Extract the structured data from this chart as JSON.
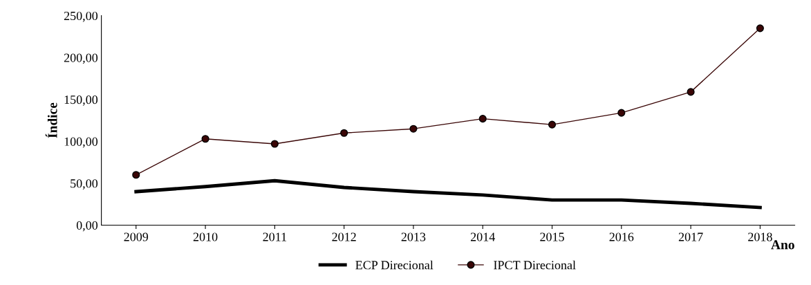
{
  "chart_data": {
    "type": "line",
    "xlabel": "Ano",
    "ylabel": "Índice",
    "categories": [
      "2009",
      "2010",
      "2011",
      "2012",
      "2013",
      "2014",
      "2015",
      "2016",
      "2017",
      "2018"
    ],
    "series": [
      {
        "name": "ECP Direcional",
        "color": "#000000",
        "marker": "none",
        "values": [
          40,
          46,
          53,
          45,
          40,
          36,
          30,
          30,
          26,
          21
        ]
      },
      {
        "name": "IPCT Direcional",
        "color": "#3a0606",
        "marker": "circle",
        "values": [
          60,
          103,
          97,
          110,
          115,
          127,
          120,
          134,
          159,
          235
        ]
      }
    ],
    "ylim": [
      0,
      250
    ],
    "yticks": [
      {
        "value": 0,
        "label": "0,00"
      },
      {
        "value": 50,
        "label": "50,00"
      },
      {
        "value": 100,
        "label": "100,00"
      },
      {
        "value": 150,
        "label": "150,00"
      },
      {
        "value": 200,
        "label": "200,00"
      },
      {
        "value": 250,
        "label": "250,00"
      }
    ],
    "grid": false,
    "legend": "bottom"
  }
}
